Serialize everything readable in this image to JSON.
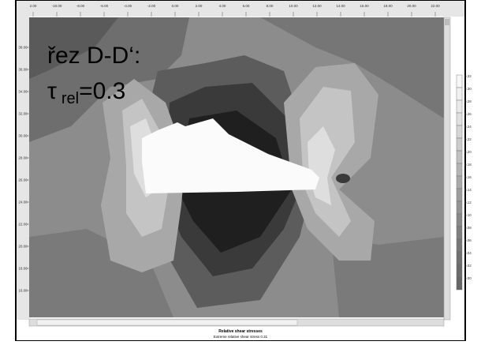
{
  "overlay": {
    "line1": "řez D-D‘:",
    "tau": "τ",
    "sub": "rel",
    "value": "=0.3"
  },
  "top_ruler": [
    "2.00",
    "-10.00",
    "-8.00",
    "-6.00",
    "-4.00",
    "-2.00",
    "0.00",
    "2.00",
    "4.00",
    "6.00",
    "8.00",
    "10.00",
    "12.00",
    "14.00",
    "16.00",
    "18.00",
    "20.00",
    "22.00"
  ],
  "left_ruler": [
    "38.00",
    "36.00",
    "34.00",
    "32.00",
    "30.00",
    "28.00",
    "26.00",
    "24.00",
    "22.00",
    "20.00",
    "18.00",
    "16.00"
  ],
  "legend": [
    "0.32",
    "0.30",
    "0.28",
    "0.26",
    "0.24",
    "0.22",
    "0.20",
    "0.18",
    "0.16",
    "0.14",
    "0.12",
    "0.10",
    "0.08",
    "0.06",
    "0.04",
    "0.02",
    "0.00"
  ],
  "caption": {
    "title": "Relative shear stresses",
    "subtitle": "Extreme relative shear stress 0.31"
  }
}
